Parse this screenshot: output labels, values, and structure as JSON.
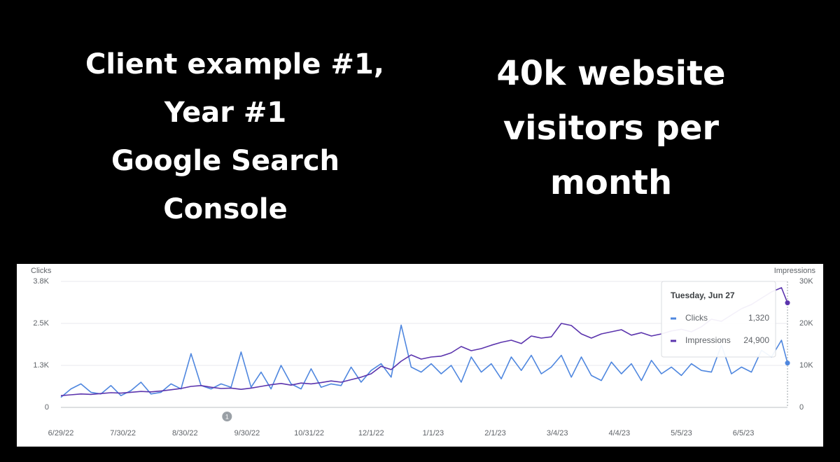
{
  "slide": {
    "left_lines": [
      "Client example #1,",
      "Year #1",
      "Google Search",
      "Console"
    ],
    "right_lines": [
      "40k website",
      "visitors per",
      "month"
    ]
  },
  "chart_data": {
    "type": "line",
    "ylabel": "Clicks",
    "y2label": "Impressions",
    "x": [
      "6/29/22",
      "7/4/22",
      "7/9/22",
      "7/14/22",
      "7/19/22",
      "7/24/22",
      "7/29/22",
      "8/3/22",
      "8/8/22",
      "8/13/22",
      "8/18/22",
      "8/23/22",
      "8/28/22",
      "9/2/22",
      "9/7/22",
      "9/12/22",
      "9/17/22",
      "9/22/22",
      "9/27/22",
      "10/2/22",
      "10/7/22",
      "10/12/22",
      "10/17/22",
      "10/22/22",
      "10/27/22",
      "11/1/22",
      "11/6/22",
      "11/11/22",
      "11/16/22",
      "11/21/22",
      "11/26/22",
      "12/1/22",
      "12/6/22",
      "12/11/22",
      "12/16/22",
      "12/21/22",
      "12/26/22",
      "12/31/22",
      "1/5/23",
      "1/10/23",
      "1/15/23",
      "1/20/23",
      "1/25/23",
      "1/30/23",
      "2/4/23",
      "2/9/23",
      "2/14/23",
      "2/19/23",
      "2/24/23",
      "3/1/23",
      "3/6/23",
      "3/11/23",
      "3/16/23",
      "3/21/23",
      "3/26/23",
      "3/31/23",
      "4/5/23",
      "4/10/23",
      "4/15/23",
      "4/20/23",
      "4/25/23",
      "4/30/23",
      "5/5/23",
      "5/10/23",
      "5/15/23",
      "5/20/23",
      "5/25/23",
      "5/30/23",
      "6/4/23",
      "6/9/23",
      "6/14/23",
      "6/19/23",
      "6/24/23",
      "6/27/23"
    ],
    "series": [
      {
        "name": "Clicks",
        "color": "#4f87df",
        "values": [
          300,
          550,
          700,
          450,
          400,
          650,
          350,
          500,
          750,
          400,
          450,
          700,
          550,
          1600,
          650,
          550,
          700,
          600,
          1650,
          600,
          1050,
          550,
          1250,
          700,
          550,
          1150,
          600,
          700,
          650,
          1200,
          750,
          1100,
          1300,
          900,
          2450,
          1200,
          1050,
          1300,
          1000,
          1250,
          750,
          1500,
          1050,
          1300,
          850,
          1500,
          1100,
          1550,
          1000,
          1200,
          1550,
          900,
          1500,
          950,
          800,
          1350,
          1000,
          1300,
          800,
          1400,
          1000,
          1200,
          950,
          1300,
          1100,
          1050,
          1850,
          1000,
          1200,
          1050,
          1700,
          1500,
          2000,
          1320
        ]
      },
      {
        "name": "Impressions",
        "color": "#5b34ad",
        "axis": "y2",
        "values": [
          2800,
          3000,
          3200,
          3100,
          3300,
          3500,
          3400,
          3600,
          3800,
          3700,
          3900,
          4200,
          4500,
          5000,
          5200,
          4800,
          4500,
          4600,
          4300,
          4600,
          5000,
          5400,
          5700,
          5300,
          5800,
          5600,
          5900,
          6300,
          6000,
          6600,
          7200,
          8000,
          9800,
          9000,
          11000,
          12500,
          11500,
          12000,
          12200,
          13000,
          14500,
          13500,
          14000,
          14800,
          15500,
          16000,
          15200,
          17000,
          16500,
          16800,
          20000,
          19500,
          17500,
          16500,
          17500,
          18000,
          18500,
          17200,
          17800,
          17000,
          17500,
          18200,
          18600,
          18000,
          19200,
          21000,
          20500,
          22000,
          23500,
          24500,
          26000,
          27500,
          28500,
          24900
        ]
      }
    ],
    "ylim": [
      0,
      3750
    ],
    "yticks": [
      0,
      {
        "value": 1250,
        "label": "1.3K"
      },
      {
        "value": 2500,
        "label": "2.5K"
      },
      {
        "value": 3750,
        "label": "3.8K"
      }
    ],
    "y2lim": [
      0,
      30000
    ],
    "y2ticks": [
      0,
      {
        "value": 10000,
        "label": "10K"
      },
      {
        "value": 20000,
        "label": "20K"
      },
      {
        "value": 30000,
        "label": "30K"
      }
    ],
    "xlim": [
      "6/29/22",
      "6/27/23"
    ],
    "xticks": [
      "6/29/22",
      "7/30/22",
      "8/30/22",
      "9/30/22",
      "10/31/22",
      "12/1/22",
      "1/1/23",
      "2/1/23",
      "3/4/23",
      "4/4/23",
      "5/5/23",
      "6/5/23"
    ],
    "grid": true,
    "annotations": [
      {
        "x": "9/20/22",
        "label": "1"
      }
    ],
    "tooltip": {
      "title": "Tuesday, Jun 27",
      "values": [
        1320,
        24900
      ],
      "value_labels": [
        "1,320",
        "24,900"
      ]
    }
  }
}
